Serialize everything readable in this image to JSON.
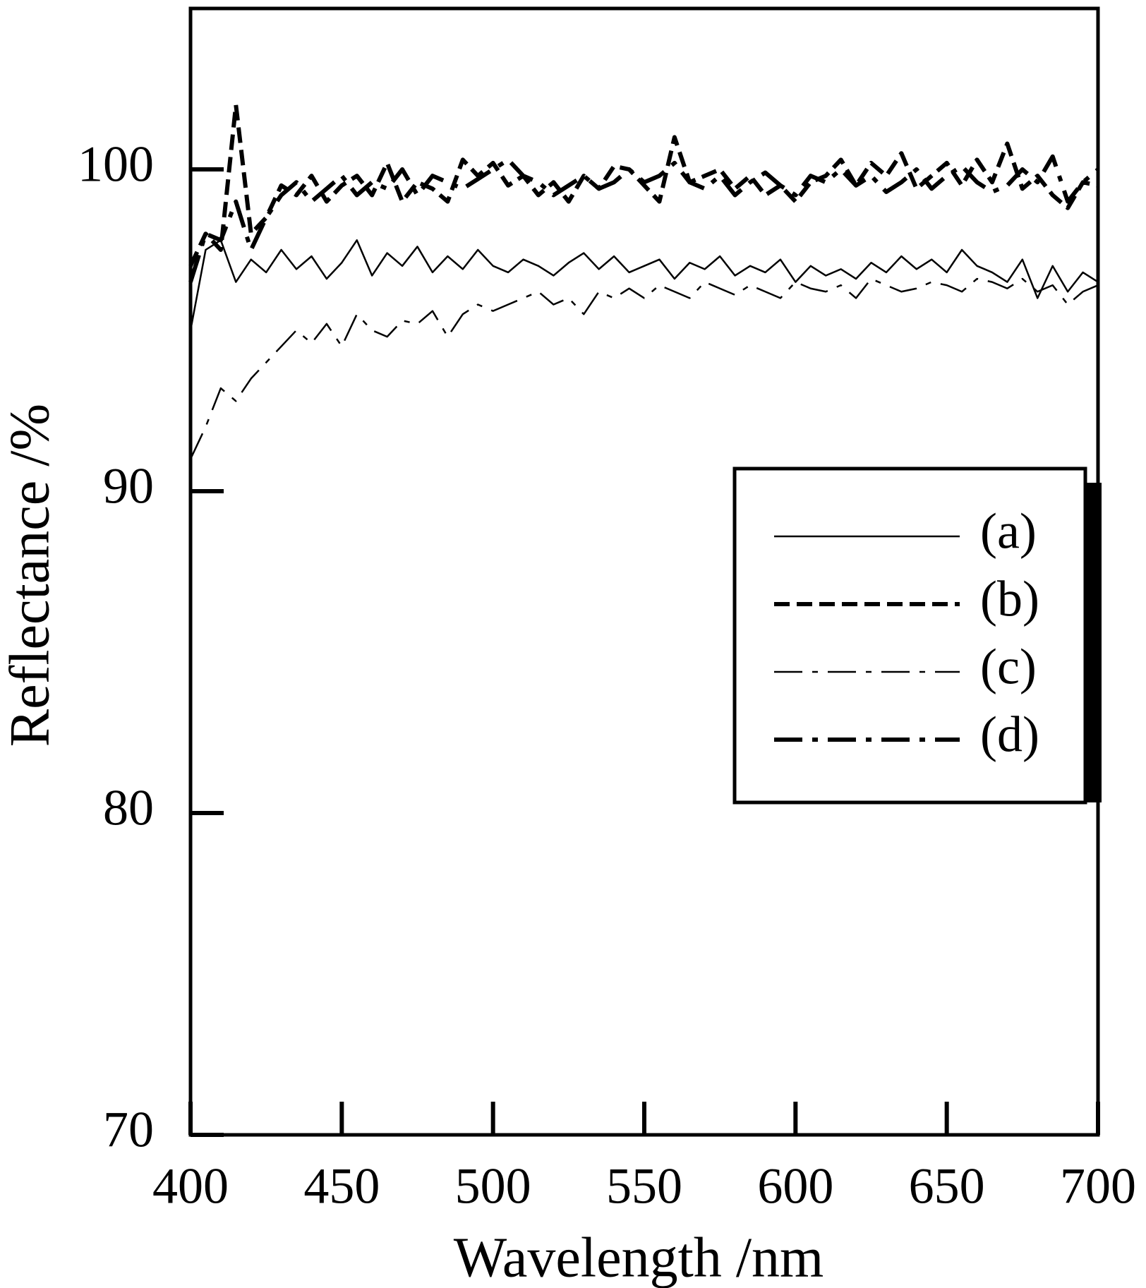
{
  "chart_data": {
    "type": "line",
    "x_label": "Wavelength /nm",
    "y_label": "Reflectance /%",
    "xlim": [
      400,
      700
    ],
    "xticks": [
      400,
      450,
      500,
      550,
      600,
      650,
      700
    ],
    "ylim": [
      70,
      105
    ],
    "yticks": [
      70,
      80,
      90,
      100
    ],
    "x": [
      400,
      405,
      410,
      415,
      420,
      425,
      430,
      435,
      440,
      445,
      450,
      455,
      460,
      465,
      470,
      475,
      480,
      485,
      490,
      495,
      500,
      505,
      510,
      515,
      520,
      525,
      530,
      535,
      540,
      545,
      550,
      555,
      560,
      565,
      570,
      575,
      580,
      585,
      590,
      595,
      600,
      605,
      610,
      615,
      620,
      625,
      630,
      635,
      640,
      645,
      650,
      655,
      660,
      665,
      670,
      675,
      680,
      685,
      690,
      695,
      700
    ],
    "series": [
      {
        "name": "(a)",
        "color": "#000000",
        "width": 2.5,
        "style": "solid",
        "values": [
          95.0,
          97.5,
          97.8,
          96.5,
          97.2,
          96.8,
          97.5,
          96.9,
          97.3,
          96.6,
          97.1,
          97.8,
          96.7,
          97.4,
          97.0,
          97.6,
          96.8,
          97.3,
          96.9,
          97.5,
          97.0,
          96.8,
          97.2,
          97.0,
          96.7,
          97.1,
          97.4,
          96.9,
          97.3,
          96.8,
          97.0,
          97.2,
          96.6,
          97.1,
          96.9,
          97.3,
          96.7,
          97.0,
          96.8,
          97.2,
          96.5,
          97.0,
          96.7,
          96.9,
          96.6,
          97.1,
          96.8,
          97.3,
          96.9,
          97.2,
          96.8,
          97.5,
          97.0,
          96.8,
          96.5,
          97.2,
          96.0,
          97.0,
          96.2,
          96.8,
          96.5
        ]
      },
      {
        "name": "(b)",
        "color": "#000000",
        "width": 6,
        "style": "dashed",
        "values": [
          97.0,
          98.0,
          97.5,
          102.0,
          98.0,
          98.5,
          99.5,
          99.2,
          99.8,
          99.0,
          99.5,
          99.8,
          99.2,
          100.2,
          99.0,
          99.6,
          99.4,
          99.0,
          100.3,
          99.8,
          100.2,
          99.5,
          99.8,
          99.2,
          99.6,
          99.0,
          99.8,
          99.4,
          100.1,
          100.0,
          99.5,
          99.0,
          101.0,
          99.6,
          99.8,
          100.0,
          99.4,
          99.8,
          99.2,
          99.5,
          99.0,
          99.6,
          99.8,
          100.3,
          99.5,
          100.2,
          99.8,
          100.5,
          99.4,
          99.8,
          100.2,
          99.5,
          100.3,
          99.6,
          100.8,
          99.4,
          99.8,
          99.2,
          98.8,
          99.6,
          99.5
        ]
      },
      {
        "name": "(c)",
        "color": "#000000",
        "width": 2.5,
        "style": "dashdot",
        "values": [
          91.0,
          92.0,
          93.2,
          92.8,
          93.5,
          94.0,
          94.5,
          95.0,
          94.6,
          95.2,
          94.5,
          95.5,
          95.0,
          94.8,
          95.3,
          95.2,
          95.6,
          94.8,
          95.5,
          95.8,
          95.6,
          95.8,
          96.0,
          96.2,
          95.8,
          96.0,
          95.5,
          96.2,
          96.0,
          96.3,
          96.0,
          96.4,
          96.2,
          96.0,
          96.5,
          96.3,
          96.1,
          96.4,
          96.2,
          96.0,
          96.5,
          96.3,
          96.2,
          96.4,
          96.0,
          96.6,
          96.4,
          96.2,
          96.3,
          96.5,
          96.4,
          96.2,
          96.6,
          96.5,
          96.3,
          96.6,
          96.2,
          96.4,
          95.8,
          96.2,
          96.4
        ]
      },
      {
        "name": "(d)",
        "color": "#000000",
        "width": 6,
        "style": "dashdot",
        "values": [
          96.5,
          98.0,
          97.8,
          99.0,
          97.5,
          98.5,
          99.2,
          99.6,
          99.0,
          99.4,
          99.8,
          99.2,
          99.6,
          99.4,
          100.0,
          99.2,
          99.8,
          99.6,
          99.4,
          99.7,
          100.0,
          100.3,
          99.8,
          99.6,
          99.2,
          99.5,
          99.8,
          99.4,
          99.6,
          100.0,
          99.6,
          99.8,
          100.2,
          99.6,
          99.4,
          99.8,
          99.2,
          99.6,
          99.9,
          99.5,
          99.2,
          99.8,
          99.6,
          100.0,
          99.5,
          99.8,
          99.3,
          99.6,
          100.0,
          99.4,
          99.8,
          100.1,
          99.6,
          99.3,
          99.5,
          100.0,
          99.6,
          100.4,
          99.0,
          99.6,
          100.0
        ]
      }
    ]
  }
}
